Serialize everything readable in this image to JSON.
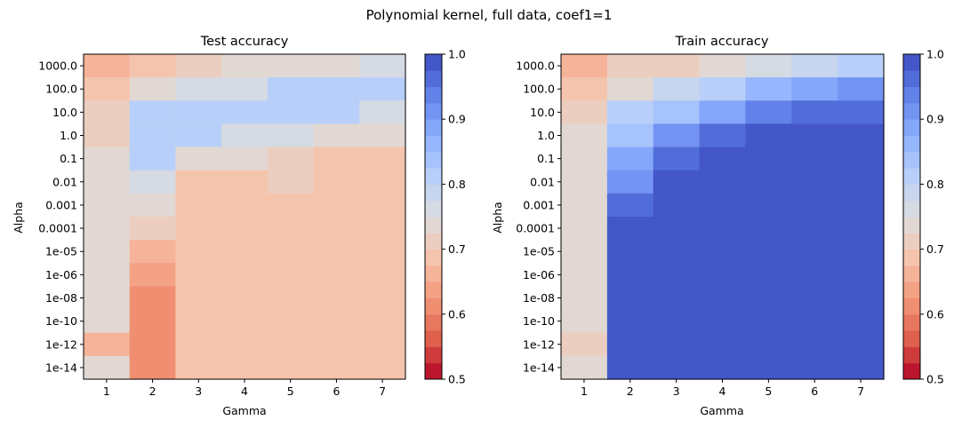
{
  "figure": {
    "suptitle": "Polynomial kernel, full data, coef1=1"
  },
  "chart_data": [
    {
      "type": "heatmap",
      "title": "Test accuracy",
      "xlabel": "Gamma",
      "ylabel": "Alpha",
      "x": [
        "1",
        "2",
        "3",
        "4",
        "5",
        "6",
        "7"
      ],
      "y": [
        "1000.0",
        "100.0",
        "10.0",
        "1.0",
        "0.1",
        "0.01",
        "0.001",
        "0.0001",
        "1e-05",
        "1e-06",
        "1e-08",
        "1e-10",
        "1e-12",
        "1e-14"
      ],
      "values": [
        [
          0.66,
          0.68,
          0.72,
          0.73,
          0.74,
          0.74,
          0.76
        ],
        [
          0.7,
          0.74,
          0.77,
          0.77,
          0.81,
          0.81,
          0.81
        ],
        [
          0.72,
          0.81,
          0.81,
          0.81,
          0.81,
          0.81,
          0.77
        ],
        [
          0.72,
          0.81,
          0.81,
          0.77,
          0.77,
          0.74,
          0.74
        ],
        [
          0.74,
          0.81,
          0.74,
          0.74,
          0.72,
          0.7,
          0.7
        ],
        [
          0.74,
          0.77,
          0.7,
          0.7,
          0.72,
          0.69,
          0.69
        ],
        [
          0.74,
          0.74,
          0.69,
          0.69,
          0.69,
          0.69,
          0.69
        ],
        [
          0.74,
          0.72,
          0.69,
          0.69,
          0.69,
          0.69,
          0.69
        ],
        [
          0.74,
          0.67,
          0.69,
          0.69,
          0.69,
          0.69,
          0.69
        ],
        [
          0.74,
          0.64,
          0.69,
          0.69,
          0.69,
          0.69,
          0.69
        ],
        [
          0.74,
          0.62,
          0.69,
          0.69,
          0.69,
          0.69,
          0.69
        ],
        [
          0.74,
          0.62,
          0.69,
          0.69,
          0.69,
          0.69,
          0.69
        ],
        [
          0.67,
          0.62,
          0.69,
          0.69,
          0.69,
          0.69,
          0.69
        ],
        [
          0.74,
          0.62,
          0.69,
          0.69,
          0.69,
          0.69,
          0.69
        ]
      ],
      "colorbar": {
        "min": 0.5,
        "max": 1.0,
        "levels": 20,
        "ticks": [
          "0.5",
          "0.6",
          "0.7",
          "0.8",
          "0.9",
          "1.0"
        ],
        "colormap": "coolwarm_r"
      },
      "grid": false
    },
    {
      "type": "heatmap",
      "title": "Train accuracy",
      "xlabel": "Gamma",
      "ylabel": "Alpha",
      "x": [
        "1",
        "2",
        "3",
        "4",
        "5",
        "6",
        "7"
      ],
      "y": [
        "1000.0",
        "100.0",
        "10.0",
        "1.0",
        "0.1",
        "0.01",
        "0.001",
        "0.0001",
        "1e-05",
        "1e-06",
        "1e-08",
        "1e-10",
        "1e-12",
        "1e-14"
      ],
      "values": [
        [
          0.66,
          0.71,
          0.72,
          0.74,
          0.76,
          0.79,
          0.82
        ],
        [
          0.7,
          0.74,
          0.79,
          0.82,
          0.86,
          0.88,
          0.91
        ],
        [
          0.72,
          0.82,
          0.84,
          0.88,
          0.93,
          0.96,
          0.96
        ],
        [
          0.74,
          0.84,
          0.91,
          0.96,
          0.98,
          0.98,
          0.98
        ],
        [
          0.74,
          0.88,
          0.96,
          0.98,
          0.98,
          0.98,
          0.98
        ],
        [
          0.74,
          0.91,
          0.98,
          0.98,
          0.98,
          0.98,
          0.98
        ],
        [
          0.74,
          0.96,
          0.98,
          0.98,
          0.98,
          0.98,
          0.98
        ],
        [
          0.74,
          0.98,
          0.98,
          0.98,
          0.98,
          0.98,
          0.98
        ],
        [
          0.74,
          0.98,
          0.98,
          0.98,
          0.98,
          0.98,
          0.98
        ],
        [
          0.74,
          0.98,
          0.98,
          0.98,
          0.98,
          0.98,
          0.98
        ],
        [
          0.74,
          0.98,
          0.98,
          0.98,
          0.98,
          0.98,
          0.98
        ],
        [
          0.74,
          0.98,
          0.98,
          0.98,
          0.98,
          0.98,
          0.98
        ],
        [
          0.71,
          0.98,
          0.98,
          0.98,
          0.98,
          0.98,
          0.98
        ],
        [
          0.74,
          0.98,
          0.98,
          0.98,
          0.98,
          0.98,
          0.98
        ]
      ],
      "colorbar": {
        "min": 0.5,
        "max": 1.0,
        "levels": 20,
        "ticks": [
          "0.5",
          "0.6",
          "0.7",
          "0.8",
          "0.9",
          "1.0"
        ],
        "colormap": "coolwarm_r"
      },
      "grid": false
    }
  ]
}
